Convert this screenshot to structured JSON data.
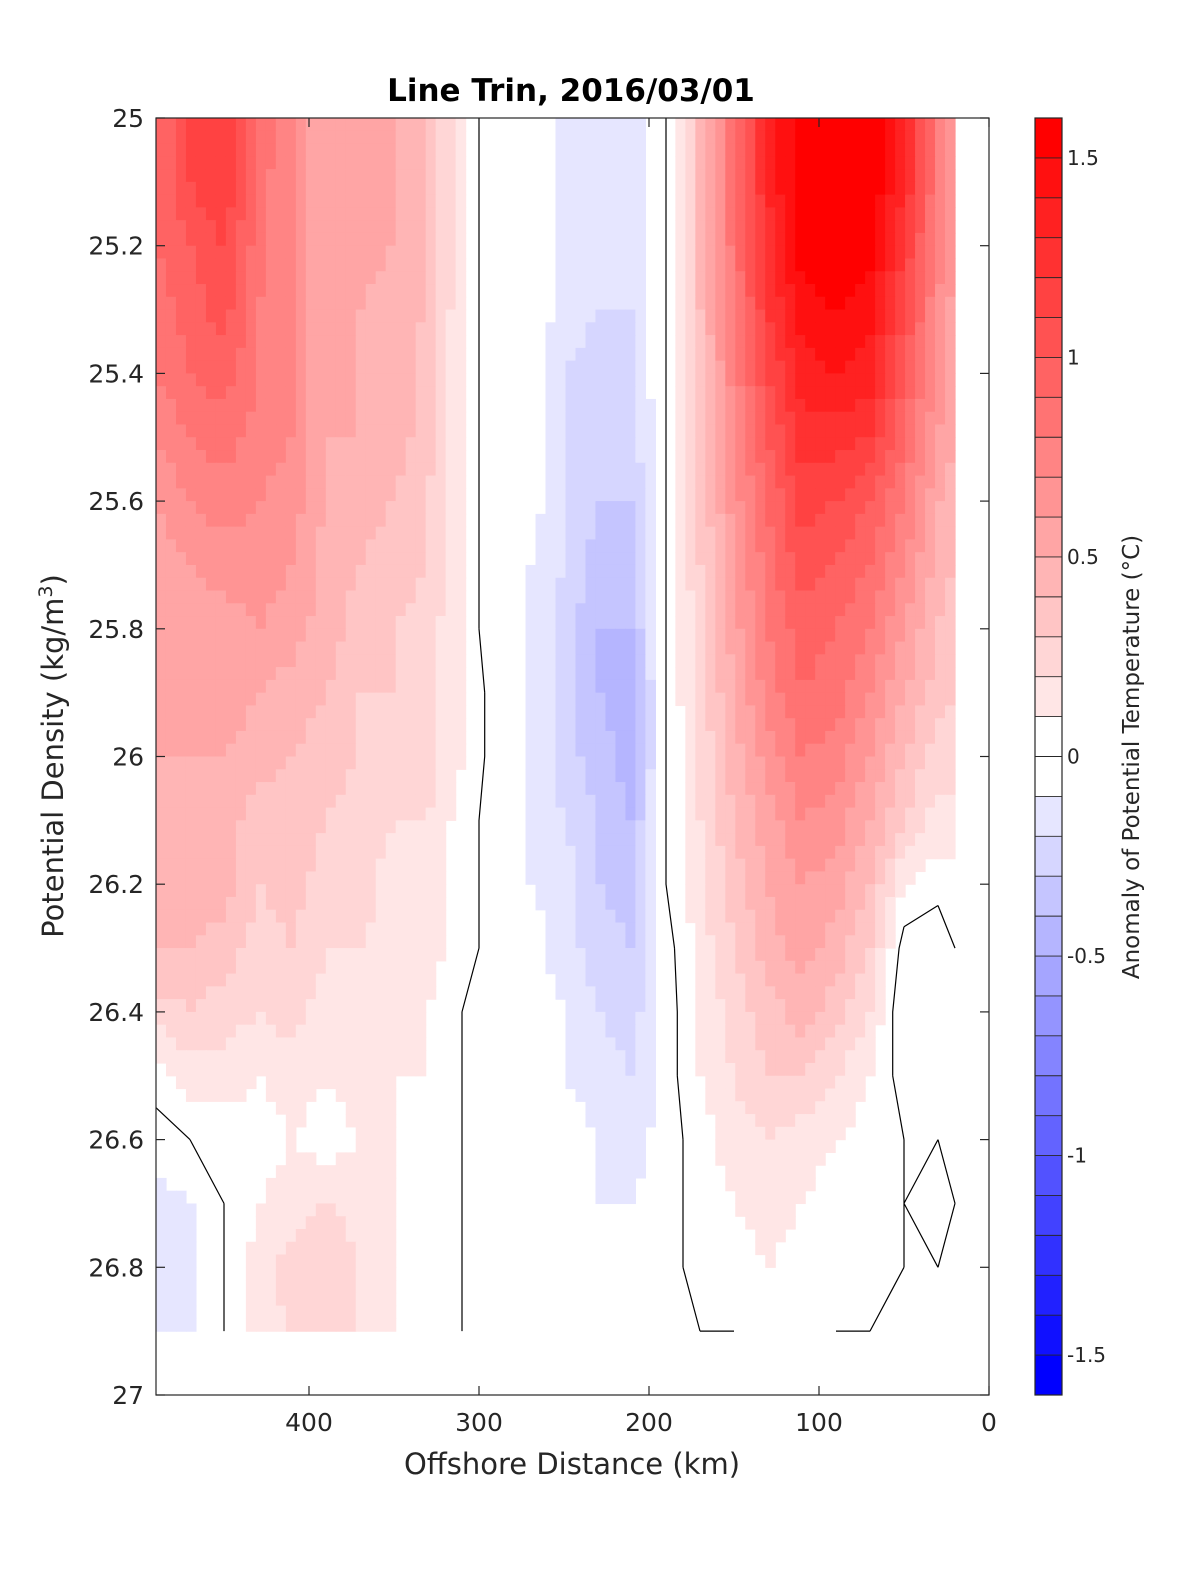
{
  "chart_data": {
    "type": "heatmap",
    "title": "Line Trin, 2016/03/01",
    "xlabel": "Offshore Distance (km)",
    "ylabel_main": "Potential Density (kg/m",
    "ylabel_sup": "3",
    "ylabel_close": ")",
    "colorbar_label": "Anomaly of Potential Temperature (°C)",
    "xlim": [
      490,
      0
    ],
    "x_reversed": true,
    "ylim": [
      25,
      27
    ],
    "y_reversed": true,
    "x_ticks": [
      400,
      300,
      200,
      100,
      0
    ],
    "x_tick_labels": [
      "400",
      "300",
      "200",
      "100",
      "0"
    ],
    "y_ticks": [
      25,
      25.2,
      25.4,
      25.6,
      25.8,
      26,
      26.2,
      26.4,
      26.6,
      26.8,
      27
    ],
    "y_tick_labels": [
      "25",
      "25.2",
      "25.4",
      "25.6",
      "25.8",
      "26",
      "26.2",
      "26.4",
      "26.6",
      "26.8",
      "27"
    ],
    "colorbar_range": [
      -1.6,
      1.6
    ],
    "colorbar_step": 0.1,
    "colorbar_ticks": [
      1.5,
      1,
      0.5,
      0,
      -0.5,
      -1,
      -1.5
    ],
    "colorbar_tick_labels": [
      "1.5",
      "1",
      "0.5",
      "0",
      "-0.5",
      "-1",
      "-1.5"
    ],
    "data_x_range": [
      20,
      490
    ],
    "data_y_range": [
      25,
      26.9
    ],
    "x": [
      490,
      470,
      450,
      430,
      410,
      390,
      370,
      350,
      330,
      310,
      290,
      270,
      250,
      230,
      210,
      190,
      170,
      150,
      130,
      110,
      90,
      70,
      50,
      30,
      20
    ],
    "y": [
      25,
      25.1,
      25.2,
      25.3,
      25.4,
      25.5,
      25.6,
      25.7,
      25.8,
      25.9,
      26,
      26.1,
      26.2,
      26.3,
      26.4,
      26.5,
      26.6,
      26.7,
      26.8,
      26.9
    ],
    "values": [
      [
        0.9,
        1.1,
        1.2,
        0.9,
        0.7,
        0.5,
        0.55,
        0.5,
        0.4,
        0.1,
        -0.1,
        0.0,
        -0.15,
        -0.2,
        -0.15,
        0.0,
        0.4,
        0.9,
        1.3,
        1.6,
        1.65,
        1.6,
        1.3,
        0.8,
        0.6
      ],
      [
        0.9,
        1.1,
        1.2,
        0.85,
        0.7,
        0.5,
        0.55,
        0.5,
        0.4,
        0.1,
        -0.1,
        0.0,
        -0.15,
        -0.2,
        -0.15,
        0.0,
        0.4,
        0.9,
        1.3,
        1.6,
        1.65,
        1.6,
        1.3,
        0.8,
        0.6
      ],
      [
        0.9,
        1.0,
        1.1,
        0.85,
        0.7,
        0.5,
        0.55,
        0.5,
        0.4,
        0.1,
        -0.1,
        0.0,
        -0.15,
        -0.2,
        -0.15,
        0.0,
        0.4,
        0.85,
        1.25,
        1.55,
        1.6,
        1.55,
        1.2,
        0.75,
        0.6
      ],
      [
        0.85,
        0.95,
        1.05,
        0.8,
        0.7,
        0.5,
        0.5,
        0.45,
        0.4,
        0.1,
        -0.1,
        0.0,
        -0.15,
        -0.2,
        -0.2,
        0.0,
        0.4,
        0.8,
        1.2,
        1.45,
        1.5,
        1.45,
        1.1,
        0.7,
        0.55
      ],
      [
        0.8,
        0.9,
        0.95,
        0.8,
        0.7,
        0.5,
        0.5,
        0.45,
        0.35,
        0.1,
        -0.1,
        -0.05,
        -0.2,
        -0.25,
        -0.2,
        0.0,
        0.35,
        0.75,
        1.1,
        1.35,
        1.4,
        1.35,
        1.0,
        0.65,
        0.5
      ],
      [
        0.7,
        0.8,
        0.85,
        0.75,
        0.7,
        0.5,
        0.5,
        0.45,
        0.35,
        0.1,
        -0.1,
        -0.05,
        -0.2,
        -0.3,
        -0.25,
        0.0,
        0.35,
        0.7,
        1.0,
        1.25,
        1.25,
        1.2,
        0.9,
        0.6,
        0.5
      ],
      [
        0.6,
        0.7,
        0.75,
        0.7,
        0.65,
        0.5,
        0.45,
        0.4,
        0.3,
        0.1,
        -0.1,
        -0.05,
        -0.2,
        -0.3,
        -0.3,
        0.0,
        0.3,
        0.65,
        0.9,
        1.15,
        1.1,
        1.0,
        0.8,
        0.5,
        0.45
      ],
      [
        0.55,
        0.6,
        0.65,
        0.65,
        0.6,
        0.45,
        0.4,
        0.35,
        0.3,
        0.1,
        -0.1,
        -0.1,
        -0.2,
        -0.35,
        -0.35,
        0.0,
        0.3,
        0.6,
        0.85,
        1.05,
        1.0,
        0.9,
        0.7,
        0.45,
        0.4
      ],
      [
        0.5,
        0.55,
        0.55,
        0.6,
        0.55,
        0.45,
        0.35,
        0.3,
        0.25,
        0.1,
        -0.1,
        -0.1,
        -0.25,
        -0.4,
        -0.4,
        0.0,
        0.25,
        0.55,
        0.8,
        0.95,
        0.9,
        0.8,
        0.6,
        0.4,
        0.35
      ],
      [
        0.5,
        0.5,
        0.55,
        0.5,
        0.45,
        0.4,
        0.3,
        0.3,
        0.25,
        0.1,
        -0.05,
        -0.1,
        -0.25,
        -0.4,
        -0.45,
        0.0,
        0.25,
        0.5,
        0.75,
        0.9,
        0.85,
        0.7,
        0.5,
        0.35,
        0.3
      ],
      [
        0.5,
        0.5,
        0.5,
        0.45,
        0.4,
        0.35,
        0.3,
        0.25,
        0.25,
        0.1,
        -0.05,
        -0.1,
        -0.25,
        -0.35,
        -0.45,
        0.0,
        0.2,
        0.45,
        0.65,
        0.8,
        0.75,
        0.6,
        0.4,
        0.25,
        0.25
      ],
      [
        0.45,
        0.5,
        0.45,
        0.35,
        0.35,
        0.3,
        0.25,
        0.2,
        0.2,
        0.05,
        -0.05,
        -0.1,
        -0.2,
        -0.3,
        -0.4,
        0.0,
        0.2,
        0.4,
        0.55,
        0.7,
        0.65,
        0.5,
        0.3,
        0.15,
        0.15
      ],
      [
        0.4,
        0.45,
        0.45,
        0.3,
        0.35,
        0.25,
        0.25,
        0.15,
        0.15,
        0.05,
        -0.05,
        -0.1,
        -0.15,
        -0.3,
        -0.35,
        0.0,
        0.15,
        0.35,
        0.5,
        0.6,
        0.55,
        0.4,
        0.1,
        0.05,
        0.05
      ],
      [
        0.4,
        0.4,
        0.35,
        0.25,
        0.3,
        0.2,
        0.2,
        0.15,
        0.15,
        0.05,
        -0.05,
        -0.05,
        -0.15,
        -0.25,
        -0.3,
        -0.05,
        0.15,
        0.3,
        0.45,
        0.55,
        0.45,
        0.3,
        -0.05,
        -0.1,
        0.0
      ],
      [
        0.25,
        0.3,
        0.25,
        0.2,
        0.25,
        0.15,
        0.2,
        0.15,
        0.1,
        0.0,
        -0.05,
        -0.05,
        -0.1,
        -0.2,
        -0.25,
        -0.05,
        0.1,
        0.25,
        0.35,
        0.45,
        0.35,
        0.2,
        -0.1,
        -0.1,
        0.0
      ],
      [
        0.05,
        0.15,
        0.15,
        0.1,
        0.15,
        0.1,
        0.15,
        0.1,
        0.1,
        0.0,
        -0.05,
        -0.05,
        -0.1,
        -0.15,
        -0.2,
        -0.05,
        0.1,
        0.2,
        0.3,
        0.3,
        0.2,
        0.1,
        -0.05,
        -0.05,
        0.0
      ],
      [
        -0.05,
        0.0,
        0.05,
        0.05,
        0.1,
        0.05,
        0.1,
        0.1,
        0.05,
        0.0,
        -0.05,
        -0.05,
        -0.05,
        -0.1,
        -0.15,
        -0.05,
        0.05,
        0.15,
        0.2,
        0.15,
        0.1,
        0.05,
        0.0,
        0.0,
        0.0
      ],
      [
        -0.15,
        -0.1,
        0.0,
        0.1,
        0.15,
        0.2,
        0.15,
        0.1,
        0.05,
        0.0,
        -0.05,
        0.0,
        -0.05,
        -0.1,
        -0.1,
        -0.05,
        0.05,
        0.1,
        0.15,
        0.1,
        0.05,
        0.05,
        0.0,
        0.05,
        0.0
      ],
      [
        -0.2,
        -0.15,
        0.0,
        0.15,
        0.25,
        0.3,
        0.2,
        0.1,
        0.05,
        0.0,
        -0.05,
        0.0,
        -0.05,
        -0.05,
        -0.1,
        -0.05,
        0.05,
        0.05,
        0.1,
        0.05,
        0.05,
        0.05,
        0.0,
        0.0,
        0.0
      ],
      [
        -0.15,
        -0.1,
        0.0,
        0.15,
        0.2,
        0.3,
        0.2,
        0.1,
        0.05,
        0.0,
        -0.05,
        -0.05,
        -0.05,
        -0.05,
        -0.1,
        -0.05,
        0.0,
        0.0,
        0.05,
        0.05,
        0.0,
        0.0,
        0.0,
        0.0,
        0.0
      ]
    ],
    "zero_contour_color": "#000000",
    "colormap": {
      "negative_end": "#0000ff",
      "zero": "#ffffff",
      "positive_end": "#ff0000"
    }
  }
}
